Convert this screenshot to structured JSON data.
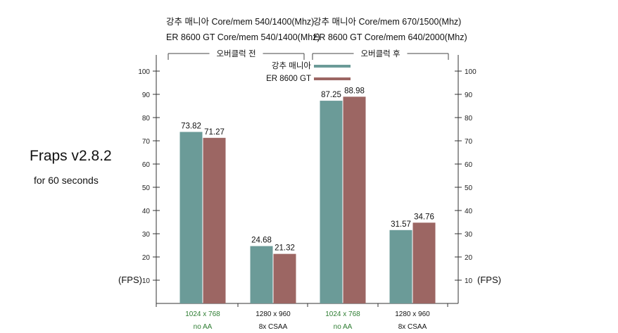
{
  "colors": {
    "series_a": "#6b9b98",
    "series_b": "#9c6663",
    "green_label": "#2e7d32",
    "axis": "#333333"
  },
  "header": {
    "after_line1": "강추 매니아  Core/mem 670/1500(Mhz)",
    "after_line2": "ER 8600 GT Core/mem 640/2000(Mhz)",
    "before_line1": "강추 매니아  Core/mem 540/1400(Mhz)",
    "before_line2": "ER 8600 GT Core/mem 540/1400(Mhz)"
  },
  "side": {
    "title": "Fraps v2.8.2",
    "subtitle": "for 60 seconds"
  },
  "chart_data": {
    "type": "bar",
    "ylim": [
      0,
      100
    ],
    "y_ticks": [
      10,
      20,
      30,
      40,
      50,
      60,
      70,
      80,
      90,
      100
    ],
    "left_unit": "(FPS)",
    "right_unit": "(FPS)",
    "groups": [
      {
        "label": "오버클럭 전",
        "categories": [
          0,
          1
        ]
      },
      {
        "label": "오버클럭 후",
        "categories": [
          2,
          3
        ]
      }
    ],
    "categories": [
      {
        "line1": "1024 x 768",
        "line2": "no AA",
        "green": true
      },
      {
        "line1": "1280 x 960",
        "line2": "8x CSAA",
        "green": false
      },
      {
        "line1": "1024 x 768",
        "line2": "no AA",
        "green": true
      },
      {
        "line1": "1280 x 960",
        "line2": "8x CSAA",
        "green": false
      }
    ],
    "series": [
      {
        "name": "강추 매니아",
        "values": [
          73.82,
          24.68,
          87.25,
          31.57
        ],
        "labels": [
          "73.82",
          "24.68",
          "87.25",
          "31.57"
        ]
      },
      {
        "name": "ER 8600 GT",
        "values": [
          71.27,
          21.32,
          88.98,
          34.76
        ],
        "labels": [
          "71.27",
          "21.32",
          "88.98",
          "34.76"
        ]
      }
    ],
    "legend_position": "top-center",
    "grid": false
  }
}
